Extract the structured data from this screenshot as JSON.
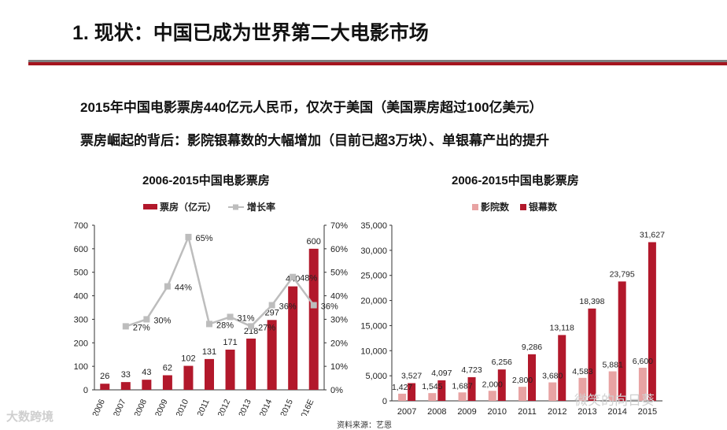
{
  "title": "1. 现状：中国已成为世界第二大电影市场",
  "lines": [
    "2015年中国电影票房440亿元人民币，仅次于美国（美国票房超过100亿美元）",
    "票房崛起的背后：影院银幕数的大幅增加（目前已超3万块）、单银幕产出的提升"
  ],
  "source": "资料来源：艺恩",
  "watermark_left": "大数跨境",
  "watermark_right": "微笑的向日葵",
  "colors": {
    "accent": "#a5141e",
    "bar": "#b2182b",
    "pink": "#e8a3a3",
    "growth_line": "#bdbdbd",
    "divider": "#7f7f7f"
  },
  "chart_data": [
    {
      "type": "bar",
      "title": "2006-2015中国电影票房",
      "categories": [
        "2006",
        "2007",
        "2008",
        "2009",
        "2010",
        "2011",
        "2012",
        "2013",
        "2014",
        "2015",
        "2016E"
      ],
      "series": [
        {
          "name": "票房（亿元）",
          "type": "bar",
          "axis": "left",
          "values": [
            26,
            33,
            43,
            62,
            102,
            131,
            171,
            218,
            297,
            440,
            600
          ]
        },
        {
          "name": "增长率",
          "type": "line",
          "axis": "right",
          "values": [
            null,
            27,
            30,
            44,
            65,
            28,
            31,
            27,
            36,
            48,
            36
          ],
          "labels": [
            "",
            "27%",
            "30%",
            "44%",
            "65%",
            "28%",
            "31%",
            "27%",
            "36%",
            "48%",
            "36%"
          ]
        }
      ],
      "ylim": [
        0,
        700
      ],
      "yticks": [
        "0",
        "100",
        "200",
        "300",
        "400",
        "500",
        "600",
        "700"
      ],
      "y2lim": [
        0,
        70
      ],
      "y2ticks": [
        "0%",
        "10%",
        "20%",
        "30%",
        "40%",
        "50%",
        "60%",
        "70%"
      ],
      "legend_position": "top"
    },
    {
      "type": "bar",
      "title": "2006-2015中国电影票房",
      "categories": [
        "2007",
        "2008",
        "2009",
        "2010",
        "2011",
        "2012",
        "2013",
        "2014",
        "2015"
      ],
      "series": [
        {
          "name": "影院数",
          "values": [
            1427,
            1545,
            1687,
            2000,
            2800,
            3680,
            4583,
            5881,
            6600
          ],
          "labels": [
            "1,427",
            "1,545",
            "1,687",
            "2,000",
            "2,800",
            "3,680",
            "4,583",
            "5,881",
            "6,600"
          ]
        },
        {
          "name": "银幕数",
          "values": [
            3527,
            4097,
            4723,
            6256,
            9286,
            13118,
            18398,
            23795,
            31627
          ],
          "labels": [
            "3,527",
            "4,097",
            "4,723",
            "6,256",
            "9,286",
            "13,118",
            "18,398",
            "23,795",
            "31,627"
          ]
        }
      ],
      "ylim": [
        0,
        35000
      ],
      "yticks": [
        "0",
        "5,000",
        "10,000",
        "15,000",
        "20,000",
        "25,000",
        "30,000",
        "35,000"
      ],
      "legend_position": "top"
    }
  ]
}
